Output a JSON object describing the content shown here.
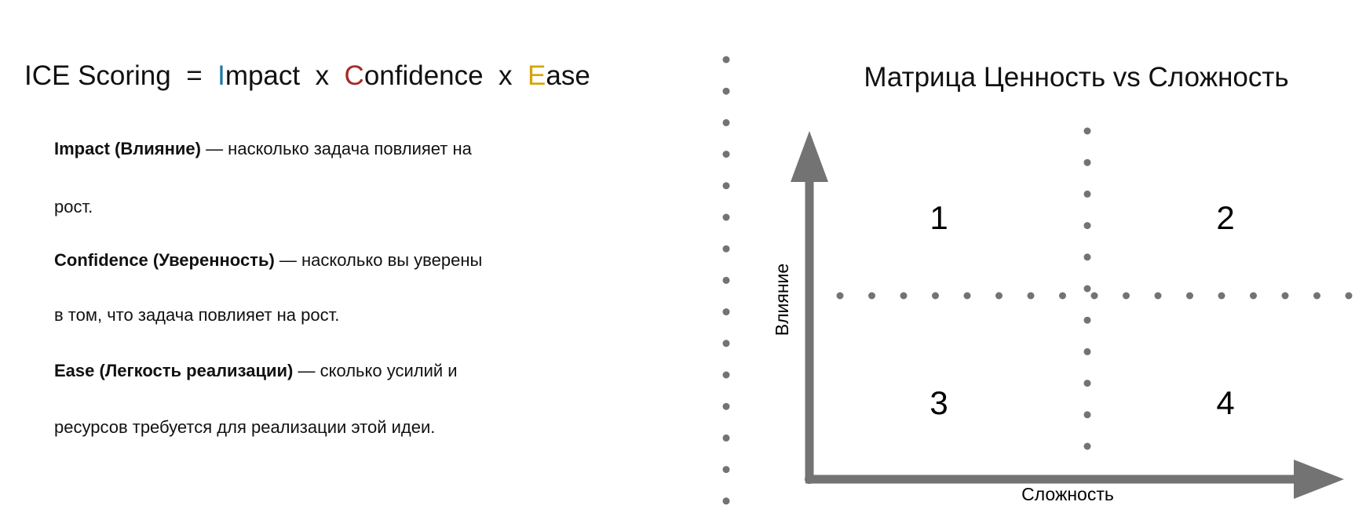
{
  "formula": {
    "lead": "ICE Scoring  =  ",
    "impact_initial": "I",
    "impact_rest": "mpact",
    "sep1": "  x  ",
    "confidence_initial": "C",
    "confidence_rest": "onfidence",
    "sep2": "  x  ",
    "ease_initial": "E",
    "ease_rest": "ase",
    "colors": {
      "impact": "#1f78a4",
      "confidence": "#a32a2a",
      "ease": "#d6a500"
    }
  },
  "definitions": [
    {
      "term": "Impact (Влияние)",
      "line1": " — насколько задача повлияет на",
      "line2": "рост."
    },
    {
      "term": "Confidence (Уверенность)",
      "line1": " — насколько вы уверены",
      "line2": "в том, что задача повлияет на рост."
    },
    {
      "term": "Ease (Легкость реализации)",
      "line1": " — сколько усилий и",
      "line2": "ресурсов требуется для реализации этой идеи."
    }
  ],
  "matrix": {
    "title": "Матрица Ценность vs Сложность",
    "y_label": "Влияние",
    "x_label": "Сложность",
    "quadrants": [
      "1",
      "2",
      "3",
      "4"
    ],
    "axis_color": "#737373",
    "dot_color": "#737373"
  }
}
